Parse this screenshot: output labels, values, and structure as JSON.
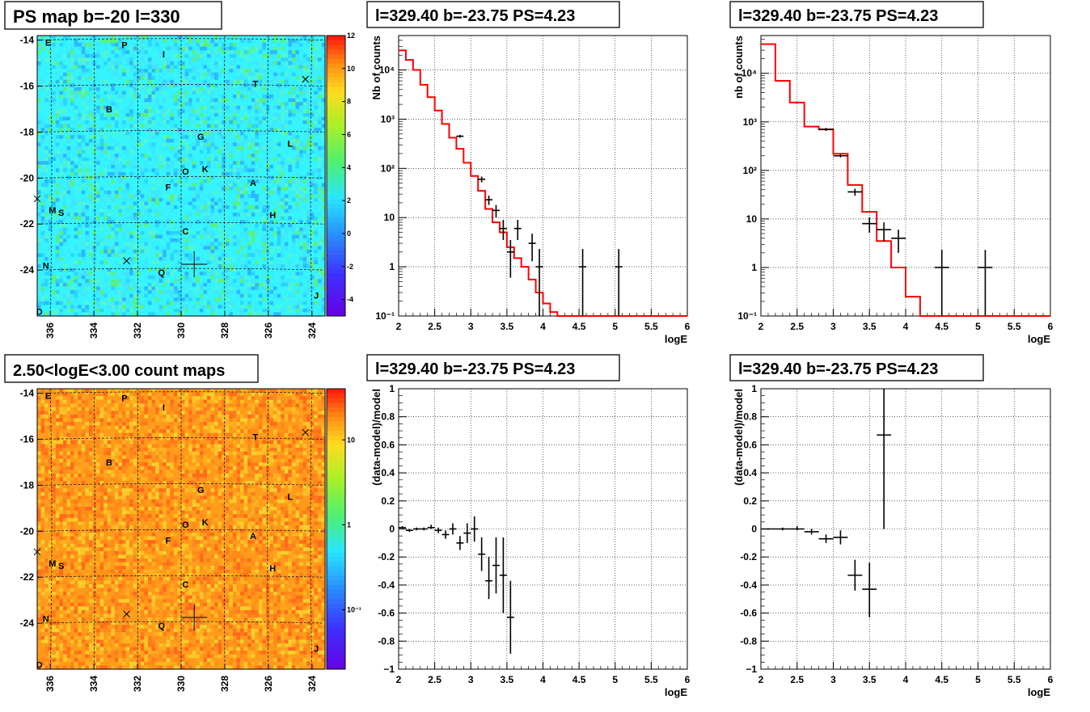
{
  "chart_data": [
    {
      "type": "heatmap",
      "title": "PS map b=-20 l=330",
      "x_ticks": [
        "336",
        "334",
        "332",
        "330",
        "328",
        "326",
        "324"
      ],
      "y_ticks": [
        "-14",
        "-16",
        "-18",
        "-20",
        "-22",
        "-24"
      ],
      "xlim": [
        336.6,
        323.4
      ],
      "ylim": [
        -26.0,
        -13.8
      ],
      "colorbar_ticks": [
        "12",
        "10",
        "8",
        "6",
        "4",
        "2",
        "0",
        "-2",
        "-4"
      ],
      "colorbar_range": [
        -5,
        12
      ],
      "colorbar_scale": "linear",
      "palette": "rainbow",
      "base_colors": [
        "#35f5ff",
        "#33f0ff",
        "#3ff2ee",
        "#40e4ff",
        "#2ad4ff",
        "#55f5cc",
        "#5bf07e",
        "#2bb7ff"
      ],
      "source_labels": [
        {
          "text": "E",
          "l": 336.1,
          "b": -14.1
        },
        {
          "text": "P",
          "l": 332.6,
          "b": -14.2
        },
        {
          "text": "I",
          "l": 330.8,
          "b": -14.6
        },
        {
          "text": "T",
          "l": 326.6,
          "b": -15.9
        },
        {
          "text": "B",
          "l": 333.3,
          "b": -17.0
        },
        {
          "text": "G",
          "l": 329.1,
          "b": -18.2
        },
        {
          "text": "L",
          "l": 325.0,
          "b": -18.5
        },
        {
          "text": "O",
          "l": 329.8,
          "b": -19.7
        },
        {
          "text": "K",
          "l": 328.9,
          "b": -19.6
        },
        {
          "text": "F",
          "l": 330.6,
          "b": -20.4
        },
        {
          "text": "A",
          "l": 326.7,
          "b": -20.2
        },
        {
          "text": "M",
          "l": 335.9,
          "b": -21.4
        },
        {
          "text": "S",
          "l": 335.5,
          "b": -21.5
        },
        {
          "text": "H",
          "l": 325.8,
          "b": -21.6
        },
        {
          "text": "C",
          "l": 329.8,
          "b": -22.3
        },
        {
          "text": "N",
          "l": 336.2,
          "b": -23.8
        },
        {
          "text": "Q",
          "l": 330.9,
          "b": -24.1
        },
        {
          "text": "J",
          "l": 323.8,
          "b": -25.1
        },
        {
          "text": "D",
          "l": 336.5,
          "b": -25.8
        }
      ],
      "markers": [
        {
          "shape": "x",
          "l": 324.3,
          "b": -15.7
        },
        {
          "shape": "x",
          "l": 336.6,
          "b": -20.9
        },
        {
          "shape": "x",
          "l": 332.5,
          "b": -23.6
        },
        {
          "shape": "cross",
          "l": 329.4,
          "b": -23.75
        }
      ]
    },
    {
      "type": "line",
      "title": "l=329.40 b=-23.75 PS=4.23",
      "xlabel": "logE",
      "ylabel": "Nb of counts",
      "xlim": [
        2,
        6
      ],
      "ylim": [
        0.1,
        50000
      ],
      "yscale": "log",
      "grid": true,
      "x_ticks": [
        "2",
        "2.5",
        "3",
        "3.5",
        "4",
        "4.5",
        "5",
        "5.5",
        "6"
      ],
      "y_ticks": [
        {
          "v": 0.1,
          "t": "10⁻¹"
        },
        {
          "v": 1,
          "t": "1"
        },
        {
          "v": 10,
          "t": "10"
        },
        {
          "v": 100,
          "t": "10²"
        },
        {
          "v": 1000,
          "t": "10³"
        },
        {
          "v": 10000,
          "t": "10⁴"
        }
      ],
      "model_step": {
        "edges": [
          2.0,
          2.1,
          2.2,
          2.3,
          2.4,
          2.5,
          2.6,
          2.7,
          2.8,
          2.9,
          3.0,
          3.1,
          3.2,
          3.3,
          3.4,
          3.5,
          3.6,
          3.7,
          3.8,
          3.9,
          4.0,
          4.1,
          4.2,
          6.0
        ],
        "values": [
          25000,
          16000,
          10000,
          5000,
          2800,
          1500,
          800,
          420,
          250,
          130,
          70,
          35,
          15,
          8,
          5,
          2.5,
          1.5,
          1.0,
          0.55,
          0.3,
          0.18,
          0.12,
          0.1
        ]
      },
      "data_points": [
        {
          "x": 2.85,
          "y": 450,
          "xerr": 0.05,
          "ylo": 420,
          "yhi": 480
        },
        {
          "x": 3.15,
          "y": 60,
          "xerr": 0.05,
          "ylo": 52,
          "yhi": 68
        },
        {
          "x": 3.25,
          "y": 23,
          "xerr": 0.05,
          "ylo": 18,
          "yhi": 28
        },
        {
          "x": 3.35,
          "y": 14,
          "xerr": 0.05,
          "ylo": 10,
          "yhi": 18
        },
        {
          "x": 3.45,
          "y": 6,
          "xerr": 0.05,
          "ylo": 3.5,
          "yhi": 9
        },
        {
          "x": 3.55,
          "y": 2,
          "xerr": 0.05,
          "ylo": 0.6,
          "yhi": 3.5
        },
        {
          "x": 3.65,
          "y": 6,
          "xerr": 0.05,
          "ylo": 3.5,
          "yhi": 9
        },
        {
          "x": 3.85,
          "y": 3,
          "xerr": 0.05,
          "ylo": 1.3,
          "yhi": 4.7
        },
        {
          "x": 3.95,
          "y": 1,
          "xerr": 0.05,
          "ylo": 0.1,
          "yhi": 2.3
        },
        {
          "x": 4.55,
          "y": 1,
          "xerr": 0.05,
          "ylo": 0.1,
          "yhi": 2.3
        },
        {
          "x": 5.05,
          "y": 1,
          "xerr": 0.05,
          "ylo": 0.1,
          "yhi": 2.3
        }
      ]
    },
    {
      "type": "line",
      "title": "l=329.40 b=-23.75 PS=4.23",
      "xlabel": "logE",
      "ylabel": "nb of counts",
      "xlim": [
        2,
        6
      ],
      "ylim": [
        0.1,
        60000
      ],
      "yscale": "log",
      "grid": true,
      "x_ticks": [
        "2",
        "2.5",
        "3",
        "3.5",
        "4",
        "4.5",
        "5",
        "5.5",
        "6"
      ],
      "y_ticks": [
        {
          "v": 0.1,
          "t": "10⁻¹"
        },
        {
          "v": 1,
          "t": "1"
        },
        {
          "v": 10,
          "t": "10"
        },
        {
          "v": 100,
          "t": "10²"
        },
        {
          "v": 1000,
          "t": "10³"
        },
        {
          "v": 10000,
          "t": "10⁴"
        }
      ],
      "model_step": {
        "edges": [
          2.0,
          2.2,
          2.4,
          2.6,
          2.8,
          3.0,
          3.2,
          3.4,
          3.6,
          3.8,
          4.0,
          4.2,
          6.0
        ],
        "values": [
          40000,
          7000,
          2500,
          800,
          700,
          220,
          50,
          14,
          3.5,
          1.0,
          0.25,
          0.1
        ]
      },
      "data_points": [
        {
          "x": 2.9,
          "y": 700,
          "xerr": 0.1,
          "ylo": 650,
          "yhi": 750
        },
        {
          "x": 3.1,
          "y": 200,
          "xerr": 0.1,
          "ylo": 185,
          "yhi": 215
        },
        {
          "x": 3.3,
          "y": 36,
          "xerr": 0.1,
          "ylo": 30,
          "yhi": 42
        },
        {
          "x": 3.5,
          "y": 8,
          "xerr": 0.1,
          "ylo": 5.2,
          "yhi": 10.8
        },
        {
          "x": 3.7,
          "y": 6,
          "xerr": 0.1,
          "ylo": 3.5,
          "yhi": 8.5
        },
        {
          "x": 3.9,
          "y": 4,
          "xerr": 0.1,
          "ylo": 2,
          "yhi": 6
        },
        {
          "x": 4.5,
          "y": 1,
          "xerr": 0.1,
          "ylo": 0.1,
          "yhi": 2.3
        },
        {
          "x": 5.1,
          "y": 1,
          "xerr": 0.1,
          "ylo": 0.1,
          "yhi": 2.3
        }
      ]
    },
    {
      "type": "heatmap",
      "title": "2.50<logE<3.00 count maps",
      "x_ticks": [
        "336",
        "334",
        "332",
        "330",
        "328",
        "326",
        "324"
      ],
      "y_ticks": [
        "-14",
        "-16",
        "-18",
        "-20",
        "-22",
        "-24"
      ],
      "xlim": [
        336.6,
        323.4
      ],
      "ylim": [
        -26.0,
        -13.8
      ],
      "colorbar_ticks": [
        {
          "v": 10,
          "t": "10"
        },
        {
          "v": 1,
          "t": "1"
        },
        {
          "v": 0.1,
          "t": "10⁻¹"
        }
      ],
      "colorbar_range": [
        0.02,
        40
      ],
      "colorbar_scale": "log",
      "palette": "rainbow",
      "base_colors": [
        "#ff9a1a",
        "#ff8a1a",
        "#ffb21f",
        "#ff7a1a",
        "#ffc526",
        "#ff6a1a",
        "#f2d12e",
        "#ffa320"
      ],
      "source_labels": [
        {
          "text": "E",
          "l": 336.1,
          "b": -14.1
        },
        {
          "text": "P",
          "l": 332.6,
          "b": -14.2
        },
        {
          "text": "I",
          "l": 330.8,
          "b": -14.6
        },
        {
          "text": "T",
          "l": 326.6,
          "b": -15.9
        },
        {
          "text": "B",
          "l": 333.3,
          "b": -17.0
        },
        {
          "text": "G",
          "l": 329.1,
          "b": -18.2
        },
        {
          "text": "L",
          "l": 325.0,
          "b": -18.5
        },
        {
          "text": "O",
          "l": 329.8,
          "b": -19.7
        },
        {
          "text": "K",
          "l": 328.9,
          "b": -19.6
        },
        {
          "text": "F",
          "l": 330.6,
          "b": -20.4
        },
        {
          "text": "A",
          "l": 326.7,
          "b": -20.2
        },
        {
          "text": "M",
          "l": 335.9,
          "b": -21.4
        },
        {
          "text": "S",
          "l": 335.5,
          "b": -21.5
        },
        {
          "text": "H",
          "l": 325.8,
          "b": -21.6
        },
        {
          "text": "C",
          "l": 329.8,
          "b": -22.3
        },
        {
          "text": "N",
          "l": 336.2,
          "b": -23.8
        },
        {
          "text": "Q",
          "l": 330.9,
          "b": -24.1
        },
        {
          "text": "J",
          "l": 323.8,
          "b": -25.1
        },
        {
          "text": "D",
          "l": 336.5,
          "b": -25.8
        }
      ],
      "markers": [
        {
          "shape": "x",
          "l": 324.3,
          "b": -15.7
        },
        {
          "shape": "x",
          "l": 336.6,
          "b": -20.9
        },
        {
          "shape": "x",
          "l": 332.5,
          "b": -23.6
        },
        {
          "shape": "cross",
          "l": 329.4,
          "b": -23.75
        }
      ]
    },
    {
      "type": "scatter",
      "title": "l=329.40 b=-23.75 PS=4.23",
      "xlabel": "logE",
      "ylabel": "(data-model)/model",
      "xlim": [
        2,
        6
      ],
      "ylim": [
        -1,
        1
      ],
      "grid": true,
      "x_ticks": [
        "2",
        "2.5",
        "3",
        "3.5",
        "4",
        "4.5",
        "5",
        "5.5",
        "6"
      ],
      "y_ticks": [
        "1",
        "0.8",
        "0.6",
        "0.4",
        "0.2",
        "0",
        "-0.2",
        "-0.4",
        "-0.6",
        "-0.8",
        "-1"
      ],
      "data_points": [
        {
          "x": 2.05,
          "y": 0.01,
          "xerr": 0.05,
          "ylo": 0.0,
          "yhi": 0.02
        },
        {
          "x": 2.15,
          "y": -0.01,
          "xerr": 0.05,
          "ylo": -0.02,
          "yhi": 0.0
        },
        {
          "x": 2.25,
          "y": 0.0,
          "xerr": 0.05,
          "ylo": -0.01,
          "yhi": 0.01
        },
        {
          "x": 2.35,
          "y": 0.0,
          "xerr": 0.05,
          "ylo": -0.01,
          "yhi": 0.01
        },
        {
          "x": 2.45,
          "y": 0.01,
          "xerr": 0.05,
          "ylo": 0.0,
          "yhi": 0.03
        },
        {
          "x": 2.55,
          "y": -0.01,
          "xerr": 0.05,
          "ylo": -0.03,
          "yhi": 0.01
        },
        {
          "x": 2.65,
          "y": -0.04,
          "xerr": 0.05,
          "ylo": -0.07,
          "yhi": -0.01
        },
        {
          "x": 2.75,
          "y": 0.0,
          "xerr": 0.05,
          "ylo": -0.04,
          "yhi": 0.04
        },
        {
          "x": 2.85,
          "y": -0.1,
          "xerr": 0.05,
          "ylo": -0.15,
          "yhi": -0.05
        },
        {
          "x": 2.95,
          "y": -0.03,
          "xerr": 0.05,
          "ylo": -0.1,
          "yhi": 0.04
        },
        {
          "x": 3.05,
          "y": 0.0,
          "xerr": 0.05,
          "ylo": -0.09,
          "yhi": 0.09
        },
        {
          "x": 3.15,
          "y": -0.18,
          "xerr": 0.05,
          "ylo": -0.3,
          "yhi": -0.06
        },
        {
          "x": 3.25,
          "y": -0.37,
          "xerr": 0.05,
          "ylo": -0.5,
          "yhi": -0.2
        },
        {
          "x": 3.35,
          "y": -0.26,
          "xerr": 0.05,
          "ylo": -0.46,
          "yhi": -0.06
        },
        {
          "x": 3.45,
          "y": -0.33,
          "xerr": 0.05,
          "ylo": -0.6,
          "yhi": -0.06
        },
        {
          "x": 3.55,
          "y": -0.63,
          "xerr": 0.05,
          "ylo": -0.89,
          "yhi": -0.37
        }
      ]
    },
    {
      "type": "scatter",
      "title": "l=329.40 b=-23.75 PS=4.23",
      "xlabel": "logE",
      "ylabel": "(data-model)/model",
      "xlim": [
        2,
        6
      ],
      "ylim": [
        -1,
        1
      ],
      "grid": true,
      "x_ticks": [
        "2",
        "2.5",
        "3",
        "3.5",
        "4",
        "4.5",
        "5",
        "5.5",
        "6"
      ],
      "y_ticks": [
        "1",
        "0.8",
        "0.6",
        "0.4",
        "0.2",
        "0",
        "-0.2",
        "-0.4",
        "-0.6",
        "-0.8",
        "-1"
      ],
      "data_points": [
        {
          "x": 2.1,
          "y": 0.0,
          "xerr": 0.1,
          "ylo": -0.005,
          "yhi": 0.005
        },
        {
          "x": 2.3,
          "y": 0.0,
          "xerr": 0.1,
          "ylo": -0.01,
          "yhi": 0.01
        },
        {
          "x": 2.5,
          "y": 0.0,
          "xerr": 0.1,
          "ylo": -0.01,
          "yhi": 0.02
        },
        {
          "x": 2.7,
          "y": -0.02,
          "xerr": 0.1,
          "ylo": -0.04,
          "yhi": 0.0
        },
        {
          "x": 2.9,
          "y": -0.07,
          "xerr": 0.1,
          "ylo": -0.1,
          "yhi": -0.04
        },
        {
          "x": 3.1,
          "y": -0.06,
          "xerr": 0.1,
          "ylo": -0.11,
          "yhi": -0.01
        },
        {
          "x": 3.3,
          "y": -0.33,
          "xerr": 0.1,
          "ylo": -0.44,
          "yhi": -0.22
        },
        {
          "x": 3.5,
          "y": -0.43,
          "xerr": 0.1,
          "ylo": -0.63,
          "yhi": -0.24
        },
        {
          "x": 3.7,
          "y": 0.67,
          "xerr": 0.1,
          "ylo": 0.0,
          "yhi": 1.0
        }
      ]
    }
  ]
}
